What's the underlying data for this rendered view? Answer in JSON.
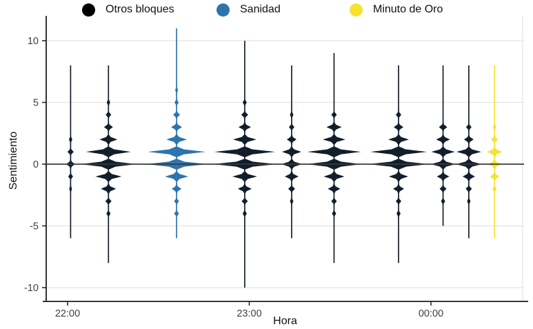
{
  "legend": {
    "items": [
      {
        "label": "Otros bloques",
        "color": "#000000"
      },
      {
        "label": "Sanidad",
        "color": "#2e74ae"
      },
      {
        "label": "Minuto de Oro",
        "color": "#f5e331"
      }
    ]
  },
  "chart_data": {
    "type": "violin",
    "title": "",
    "xlabel": "Hora",
    "ylabel": "Sentimiento",
    "x_ticks": [
      {
        "label": "22:00",
        "minutes": 0
      },
      {
        "label": "23:00",
        "minutes": 60
      },
      {
        "label": "00:00",
        "minutes": 120
      }
    ],
    "y_ticks": [
      10,
      5,
      0,
      -5,
      -10
    ],
    "ylim": [
      -11,
      12
    ],
    "x_range_minutes": [
      -7,
      151
    ],
    "grid": "horizontal-major",
    "zero_line": true,
    "legend_position": "top",
    "group_colors": {
      "Otros bloques": "#121e2b",
      "Sanidad": "#2e74ae",
      "Minuto de Oro": "#f5e331"
    },
    "violins": [
      {
        "group": "Otros bloques",
        "minutes": 1,
        "tail": [
          -6,
          8
        ],
        "bulges": [
          [
            2,
            5
          ],
          [
            1,
            9
          ],
          [
            0,
            13
          ],
          [
            -1,
            7
          ],
          [
            -2,
            4
          ]
        ]
      },
      {
        "group": "Otros bloques",
        "minutes": 13.5,
        "tail": [
          -8,
          8
        ],
        "bulges": [
          [
            5,
            5
          ],
          [
            4,
            8
          ],
          [
            3,
            13
          ],
          [
            2,
            26
          ],
          [
            1,
            65
          ],
          [
            0,
            82
          ],
          [
            -1,
            38
          ],
          [
            -2,
            22
          ],
          [
            -3,
            9
          ],
          [
            -4,
            6
          ]
        ]
      },
      {
        "group": "Sanidad",
        "minutes": 36,
        "tail": [
          -6,
          11
        ],
        "bulges": [
          [
            6,
            4
          ],
          [
            5,
            6
          ],
          [
            4,
            10
          ],
          [
            3,
            16
          ],
          [
            2,
            30
          ],
          [
            1,
            84
          ],
          [
            0,
            90
          ],
          [
            -1,
            34
          ],
          [
            -2,
            14
          ],
          [
            -3,
            7
          ],
          [
            -4,
            7
          ]
        ]
      },
      {
        "group": "Otros bloques",
        "minutes": 58.5,
        "tail": [
          -10,
          10
        ],
        "bulges": [
          [
            5,
            6
          ],
          [
            4,
            10
          ],
          [
            3,
            18
          ],
          [
            2,
            34
          ],
          [
            1,
            88
          ],
          [
            0,
            94
          ],
          [
            -1,
            36
          ],
          [
            -2,
            20
          ],
          [
            -3,
            9
          ],
          [
            -4,
            6
          ]
        ]
      },
      {
        "group": "Otros bloques",
        "minutes": 74,
        "tail": [
          -6,
          8
        ],
        "bulges": [
          [
            4,
            5
          ],
          [
            3,
            8
          ],
          [
            2,
            14
          ],
          [
            1,
            28
          ],
          [
            0,
            30
          ],
          [
            -1,
            20
          ],
          [
            -2,
            10
          ],
          [
            -3,
            5
          ]
        ]
      },
      {
        "group": "Otros bloques",
        "minutes": 88,
        "tail": [
          -8,
          9
        ],
        "bulges": [
          [
            4,
            8
          ],
          [
            3,
            22
          ],
          [
            2,
            33
          ],
          [
            1,
            78
          ],
          [
            0,
            80
          ],
          [
            -1,
            30
          ],
          [
            -2,
            18
          ],
          [
            -3,
            8
          ],
          [
            -4,
            6
          ]
        ]
      },
      {
        "group": "Otros bloques",
        "minutes": 109.3,
        "tail": [
          -8,
          8
        ],
        "bulges": [
          [
            4,
            8
          ],
          [
            3,
            14
          ],
          [
            2,
            30
          ],
          [
            1,
            82
          ],
          [
            0,
            88
          ],
          [
            -1,
            28
          ],
          [
            -2,
            16
          ],
          [
            -3,
            8
          ],
          [
            -4,
            6
          ]
        ]
      },
      {
        "group": "Otros bloques",
        "minutes": 124,
        "tail": [
          -5,
          8
        ],
        "bulges": [
          [
            3,
            12
          ],
          [
            2,
            20
          ],
          [
            1,
            34
          ],
          [
            0,
            36
          ],
          [
            -1,
            18
          ],
          [
            -2,
            10
          ],
          [
            -3,
            6
          ]
        ]
      },
      {
        "group": "Otros bloques",
        "minutes": 132.5,
        "tail": [
          -6,
          8
        ],
        "bulges": [
          [
            3,
            8
          ],
          [
            2,
            14
          ],
          [
            1,
            36
          ],
          [
            0,
            38
          ],
          [
            -1,
            18
          ],
          [
            -2,
            9
          ],
          [
            -3,
            5
          ]
        ]
      },
      {
        "group": "Minuto de Oro",
        "minutes": 141,
        "tail": [
          -6,
          8
        ],
        "bulges": [
          [
            3,
            5
          ],
          [
            2,
            10
          ],
          [
            1,
            22
          ],
          [
            0,
            20
          ],
          [
            -1,
            13
          ],
          [
            -2,
            6
          ]
        ]
      }
    ]
  },
  "style": {
    "grid_color": "#e3e3e3",
    "axis_color": "#1b1b1b",
    "zero_line_color": "#3a3a3a",
    "tick_label_color": "#404040"
  }
}
